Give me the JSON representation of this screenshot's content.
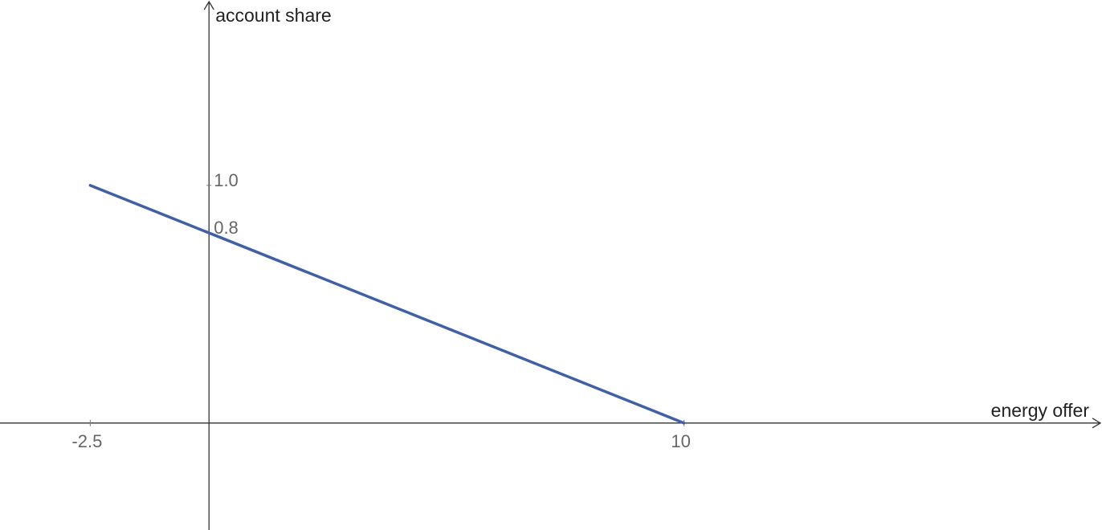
{
  "chart_data": {
    "type": "line",
    "xlabel": "energy offer",
    "ylabel": "account share",
    "x_ticks": [
      {
        "value": -2.5,
        "label": "-2.5"
      },
      {
        "value": 10,
        "label": "10"
      }
    ],
    "y_ticks": [
      {
        "value": 1.0,
        "label": "1.0"
      },
      {
        "value": 0.8,
        "label": "0.8"
      }
    ],
    "xlim": [
      -4.4,
      18.8
    ],
    "ylim": [
      -0.45,
      1.78
    ],
    "grid": false,
    "legend": "none",
    "series": [
      {
        "color": "#4060A8",
        "x": [
          -2.5,
          10
        ],
        "y": [
          1.0,
          0
        ]
      }
    ]
  }
}
